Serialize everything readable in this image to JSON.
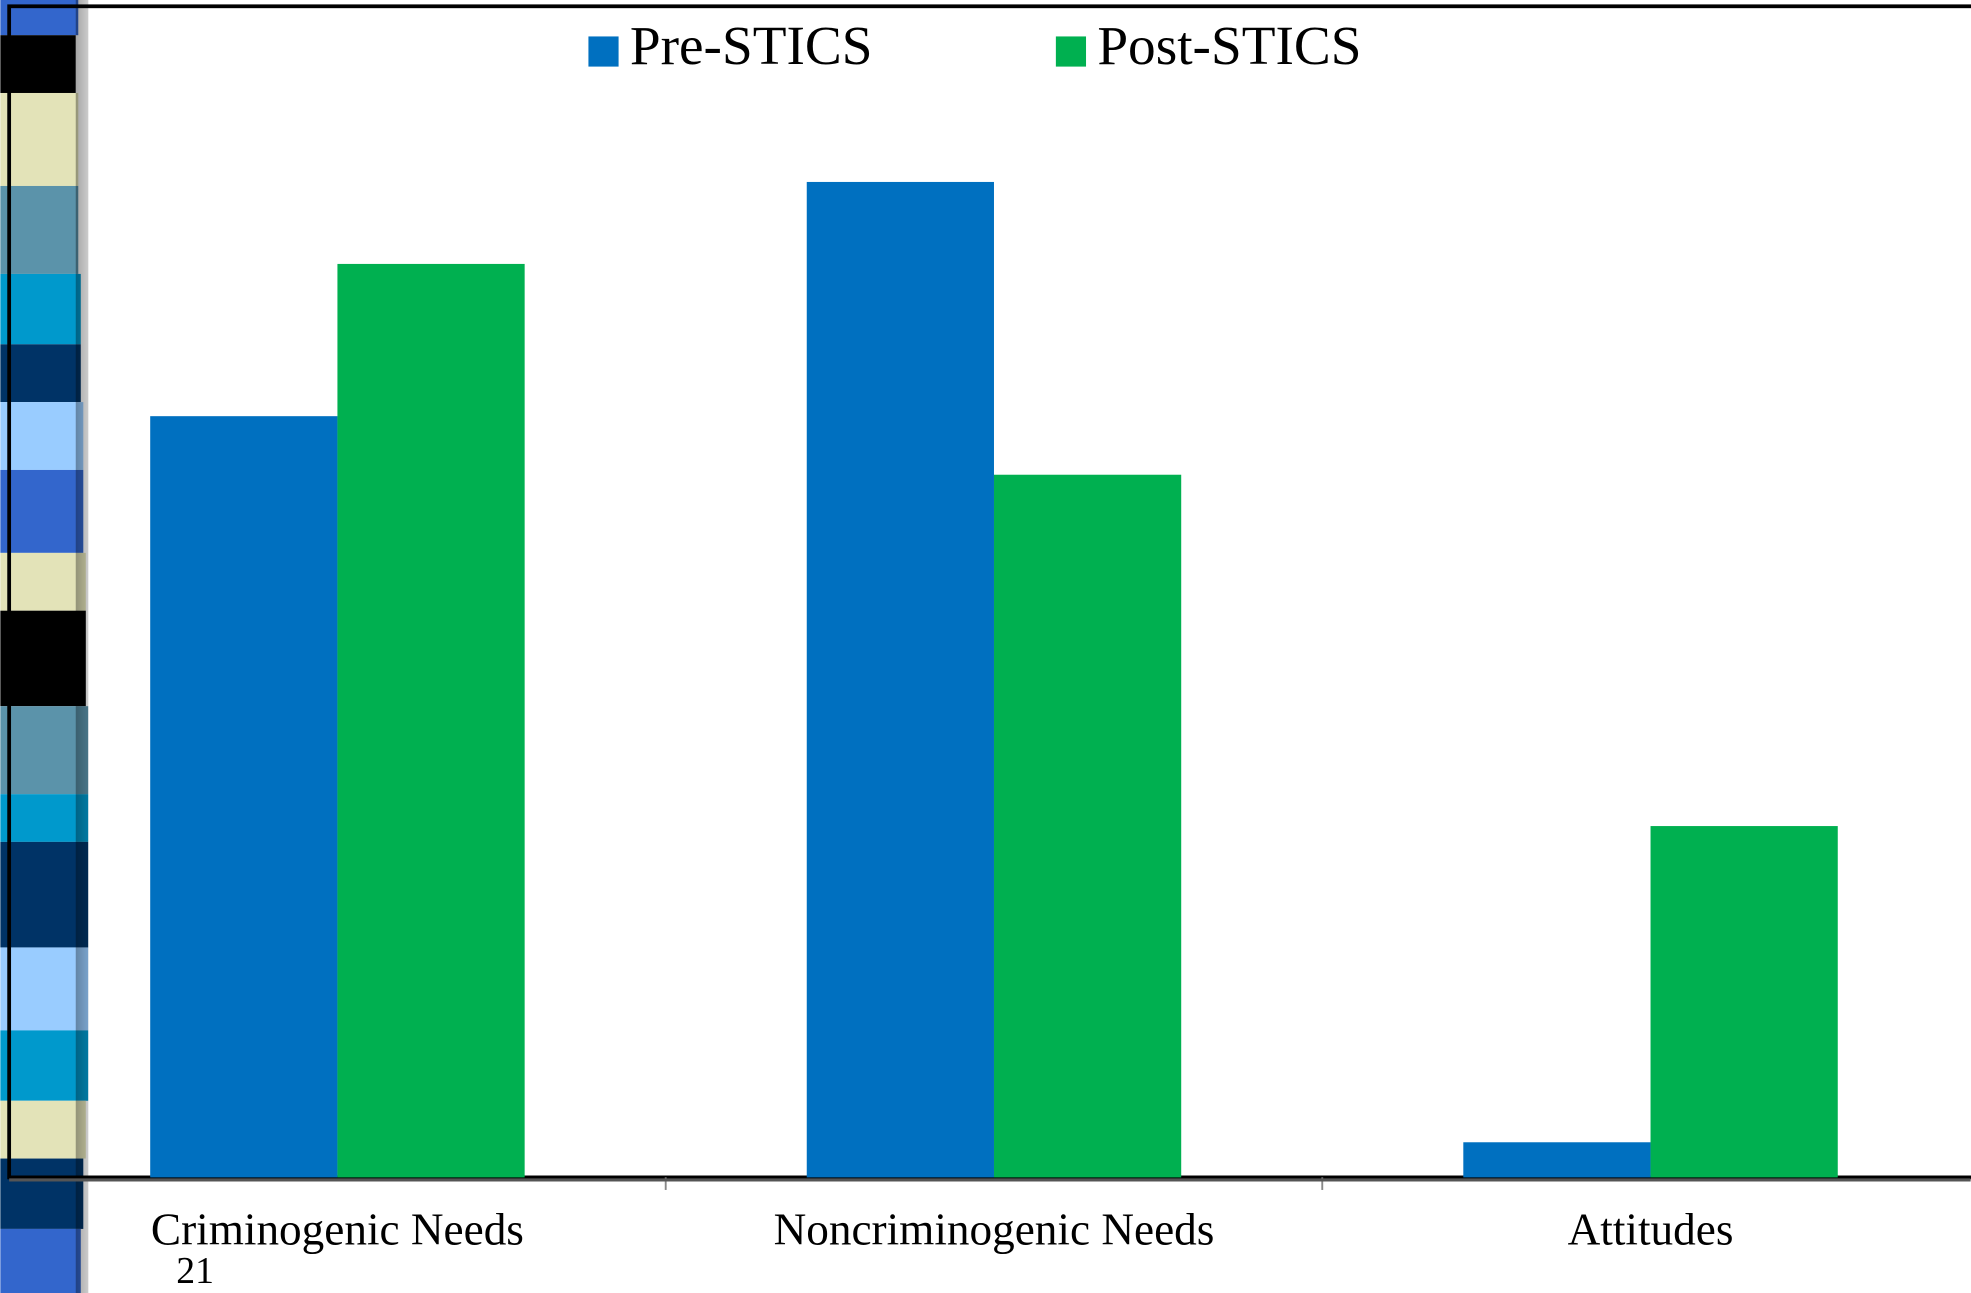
{
  "chart_data": {
    "type": "bar",
    "categories": [
      "Criminogenic Needs",
      "Noncriminogenic Needs",
      "Attitudes"
    ],
    "series": [
      {
        "name": "Pre-STICS",
        "color": "#0070c0",
        "values": [
          65,
          85,
          3
        ]
      },
      {
        "name": "Post-STICS",
        "color": "#00b050",
        "values": [
          78,
          60,
          30
        ]
      }
    ],
    "ylim": [
      0,
      100
    ],
    "legend": "top"
  },
  "slide": {
    "number": "21"
  }
}
